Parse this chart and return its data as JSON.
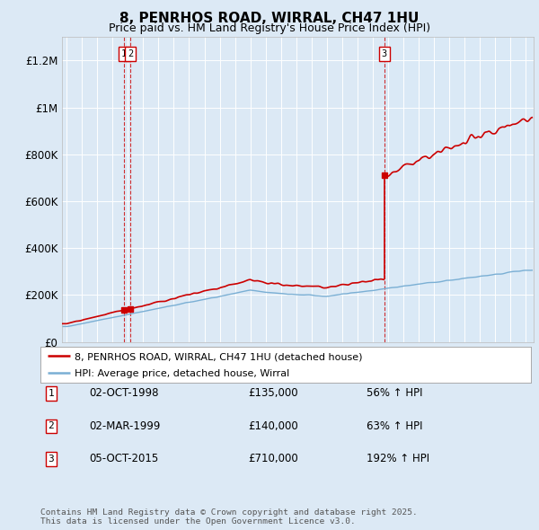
{
  "title": "8, PENRHOS ROAD, WIRRAL, CH47 1HU",
  "subtitle": "Price paid vs. HM Land Registry's House Price Index (HPI)",
  "background_color": "#dce9f5",
  "ylim": [
    0,
    1300000
  ],
  "yticks": [
    0,
    200000,
    400000,
    600000,
    800000,
    1000000,
    1200000
  ],
  "ytick_labels": [
    "£0",
    "£200K",
    "£400K",
    "£600K",
    "£800K",
    "£1M",
    "£1.2M"
  ],
  "xlim_start": 1994.7,
  "xlim_end": 2025.5,
  "sale_dates": [
    1998.75,
    1999.17,
    2015.75
  ],
  "sale_prices": [
    135000,
    140000,
    710000
  ],
  "sale_labels": [
    "1",
    "2",
    "3"
  ],
  "legend_line1": "8, PENRHOS ROAD, WIRRAL, CH47 1HU (detached house)",
  "legend_line2": "HPI: Average price, detached house, Wirral",
  "table_entries": [
    {
      "num": "1",
      "date": "02-OCT-1998",
      "price": "£135,000",
      "pct": "56% ↑ HPI"
    },
    {
      "num": "2",
      "date": "02-MAR-1999",
      "price": "£140,000",
      "pct": "63% ↑ HPI"
    },
    {
      "num": "3",
      "date": "05-OCT-2015",
      "price": "£710,000",
      "pct": "192% ↑ HPI"
    }
  ],
  "footer": "Contains HM Land Registry data © Crown copyright and database right 2025.\nThis data is licensed under the Open Government Licence v3.0.",
  "red_color": "#cc0000",
  "blue_color": "#7aafd4",
  "shade_color": "#daeaf7"
}
